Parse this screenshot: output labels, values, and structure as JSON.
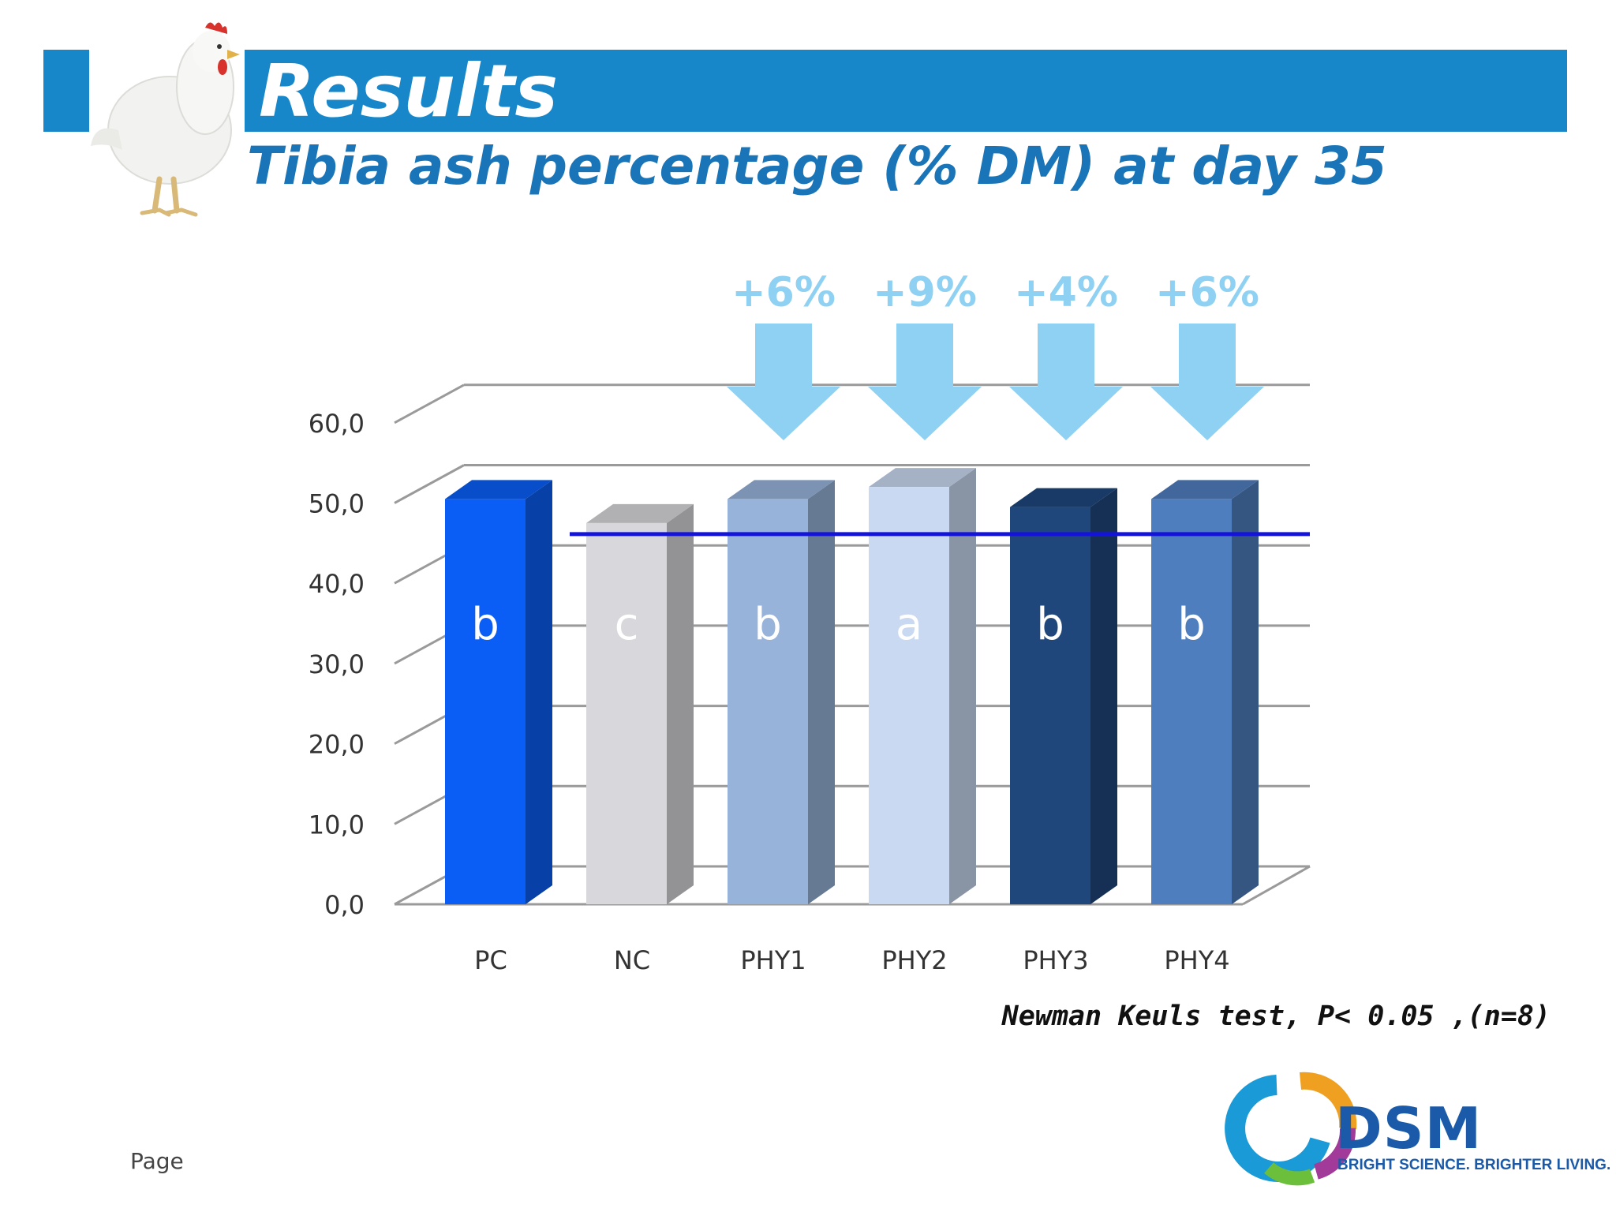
{
  "header": {
    "title": "Results",
    "subtitle": "Tibia ash percentage (% DM) at day 35"
  },
  "colors": {
    "header_blue": "#1787ca",
    "subtitle_blue": "#1a74b8",
    "reference_line": "#1414d8",
    "arrow_blue": "#8fd1f2"
  },
  "chart_data": {
    "type": "bar",
    "title": "",
    "xlabel": "",
    "ylabel": "",
    "ylim": [
      0,
      60
    ],
    "yticks": [
      "0,0",
      "10,0",
      "20,0",
      "30,0",
      "40,0",
      "50,0",
      "60,0"
    ],
    "grid": true,
    "categories": [
      "PC",
      "NC",
      "PHY1",
      "PHY2",
      "PHY3",
      "PHY4"
    ],
    "values": [
      50.5,
      47.5,
      50.5,
      52.0,
      49.5,
      50.5
    ],
    "bar_colors": [
      "#0a5ef5",
      "#d8d8dc",
      "#97b3da",
      "#c9d9f1",
      "#1f477c",
      "#4f7ebf"
    ],
    "significance_letters": [
      "b",
      "c",
      "b",
      "a",
      "b",
      "b"
    ],
    "reference_line_value": 47.5,
    "increase_annotations": [
      {
        "category": "PHY1",
        "label": "+6%"
      },
      {
        "category": "PHY2",
        "label": "+9%"
      },
      {
        "category": "PHY3",
        "label": "+4%"
      },
      {
        "category": "PHY4",
        "label": "+6%"
      }
    ]
  },
  "footnote": "Newman Keuls test, P< 0.05 ,(n=8)",
  "footer": {
    "page_label": "Page",
    "logo": {
      "name": "DSM",
      "tagline": "BRIGHT SCIENCE. BRIGHTER LIVING."
    }
  }
}
